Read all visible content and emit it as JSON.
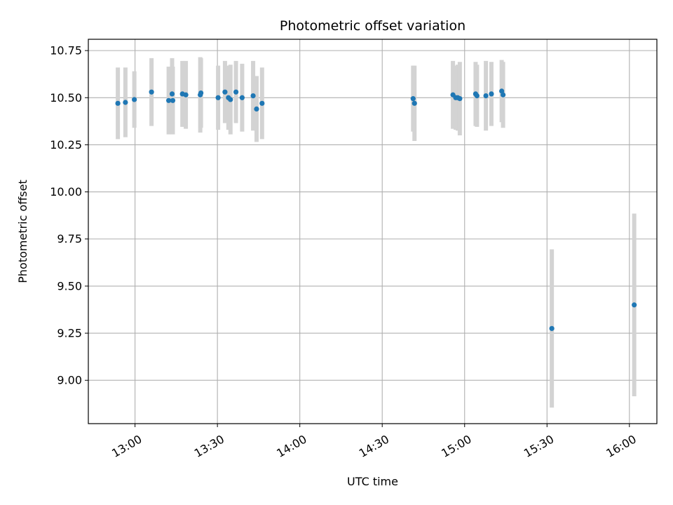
{
  "chart_data": {
    "type": "scatter",
    "title": "Photometric offset variation",
    "xlabel": "UTC time",
    "ylabel": "Photometric offset",
    "x_unit": "time (HH:MM UTC)",
    "xlim": [
      "12:43",
      "16:10"
    ],
    "ylim": [
      8.77,
      10.81
    ],
    "xticks": [
      "13:00",
      "13:30",
      "14:00",
      "14:30",
      "15:00",
      "15:30",
      "16:00"
    ],
    "yticks": [
      "9.00",
      "9.25",
      "9.50",
      "9.75",
      "10.00",
      "10.25",
      "10.50",
      "10.75"
    ],
    "grid": true,
    "point_color": "#1f77b4",
    "errorbar_color": "#d3d3d3",
    "series": [
      {
        "points": [
          {
            "t": "12:53:45",
            "y": 10.47,
            "err": 0.19
          },
          {
            "t": "12:56:30",
            "y": 10.475,
            "err": 0.185
          },
          {
            "t": "12:59:45",
            "y": 10.49,
            "err": 0.15
          },
          {
            "t": "13:06:00",
            "y": 10.53,
            "err": 0.18
          },
          {
            "t": "13:12:15",
            "y": 10.485,
            "err": 0.18
          },
          {
            "t": "13:13:30",
            "y": 10.52,
            "err": 0.19
          },
          {
            "t": "13:13:45",
            "y": 10.485,
            "err": 0.18
          },
          {
            "t": "13:17:15",
            "y": 10.52,
            "err": 0.175
          },
          {
            "t": "13:18:30",
            "y": 10.515,
            "err": 0.18
          },
          {
            "t": "13:23:45",
            "y": 10.515,
            "err": 0.2
          },
          {
            "t": "13:24:00",
            "y": 10.525,
            "err": 0.185
          },
          {
            "t": "13:30:15",
            "y": 10.5,
            "err": 0.17
          },
          {
            "t": "13:32:45",
            "y": 10.53,
            "err": 0.165
          },
          {
            "t": "13:34:00",
            "y": 10.5,
            "err": 0.17
          },
          {
            "t": "13:34:45",
            "y": 10.49,
            "err": 0.185
          },
          {
            "t": "13:36:45",
            "y": 10.53,
            "err": 0.165
          },
          {
            "t": "13:39:00",
            "y": 10.5,
            "err": 0.18
          },
          {
            "t": "13:43:00",
            "y": 10.51,
            "err": 0.185
          },
          {
            "t": "13:44:15",
            "y": 10.44,
            "err": 0.175
          },
          {
            "t": "13:46:15",
            "y": 10.47,
            "err": 0.19
          },
          {
            "t": "14:41:15",
            "y": 10.495,
            "err": 0.175
          },
          {
            "t": "14:41:45",
            "y": 10.47,
            "err": 0.2
          },
          {
            "t": "14:55:45",
            "y": 10.515,
            "err": 0.18
          },
          {
            "t": "14:56:45",
            "y": 10.5,
            "err": 0.17
          },
          {
            "t": "14:57:30",
            "y": 10.5,
            "err": 0.175
          },
          {
            "t": "14:58:15",
            "y": 10.495,
            "err": 0.195
          },
          {
            "t": "15:04:00",
            "y": 10.52,
            "err": 0.17
          },
          {
            "t": "15:04:30",
            "y": 10.51,
            "err": 0.165
          },
          {
            "t": "15:07:45",
            "y": 10.51,
            "err": 0.185
          },
          {
            "t": "15:09:45",
            "y": 10.52,
            "err": 0.17
          },
          {
            "t": "15:13:30",
            "y": 10.535,
            "err": 0.165
          },
          {
            "t": "15:14:00",
            "y": 10.515,
            "err": 0.175
          },
          {
            "t": "15:31:45",
            "y": 9.275,
            "err": 0.42
          },
          {
            "t": "16:01:45",
            "y": 9.4,
            "err": 0.485
          }
        ]
      }
    ]
  }
}
